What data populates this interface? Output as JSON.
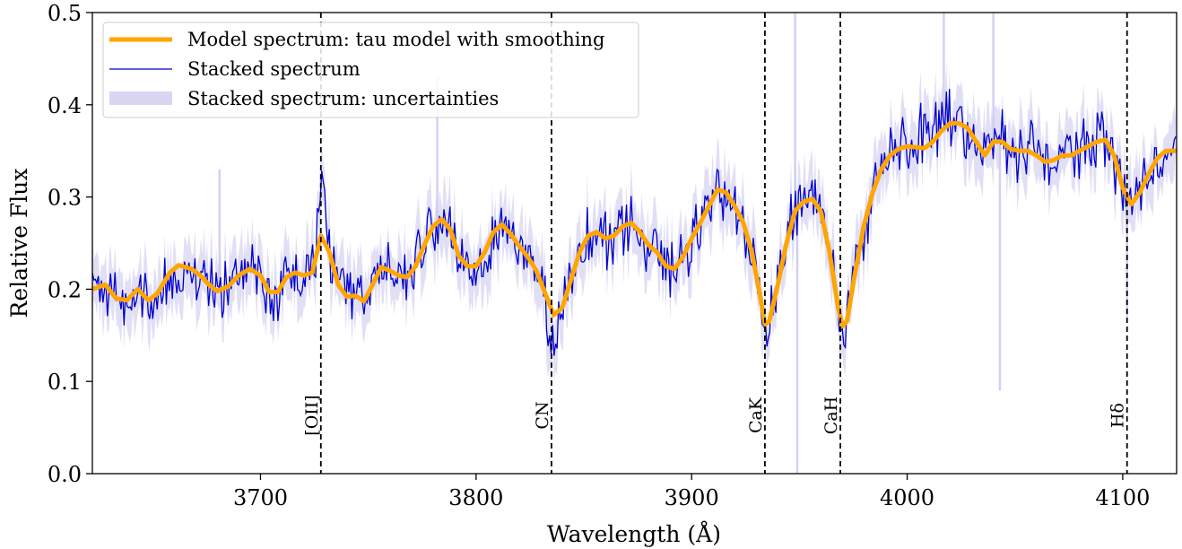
{
  "chart_data": {
    "type": "line",
    "xlabel": "Wavelength (Å)",
    "ylabel": "Relative Flux",
    "xlim": [
      3622,
      4125
    ],
    "ylim": [
      0,
      0.5
    ],
    "x_ticks": [
      3700,
      3800,
      3900,
      4000,
      4100
    ],
    "y_ticks": [
      0.0,
      0.1,
      0.2,
      0.3,
      0.4,
      0.5
    ],
    "x_tick_labels": [
      "3700",
      "3800",
      "3900",
      "4000",
      "4100"
    ],
    "y_tick_labels": [
      "0.0",
      "0.1",
      "0.2",
      "0.3",
      "0.4",
      "0.5"
    ],
    "grid": false,
    "legend_position": "top-left",
    "series": [
      {
        "name": "Model spectrum: tau model with smoothing",
        "color": "#ffa500",
        "x": [
          3622,
          3628,
          3633,
          3638,
          3643,
          3648,
          3652,
          3658,
          3662,
          3668,
          3672,
          3676,
          3680,
          3685,
          3690,
          3695,
          3700,
          3704,
          3708,
          3712,
          3716,
          3720,
          3724,
          3728,
          3732,
          3736,
          3740,
          3744,
          3748,
          3752,
          3756,
          3760,
          3764,
          3768,
          3772,
          3776,
          3780,
          3784,
          3788,
          3792,
          3796,
          3800,
          3804,
          3808,
          3812,
          3816,
          3820,
          3824,
          3828,
          3832,
          3836,
          3840,
          3844,
          3848,
          3852,
          3856,
          3860,
          3864,
          3868,
          3872,
          3876,
          3880,
          3884,
          3888,
          3892,
          3896,
          3900,
          3904,
          3908,
          3912,
          3916,
          3920,
          3924,
          3928,
          3932,
          3934,
          3936,
          3940,
          3944,
          3948,
          3952,
          3956,
          3960,
          3964,
          3968,
          3970,
          3972,
          3976,
          3980,
          3984,
          3988,
          3992,
          3996,
          4000,
          4004,
          4008,
          4012,
          4016,
          4020,
          4024,
          4028,
          4032,
          4036,
          4040,
          4044,
          4048,
          4052,
          4056,
          4060,
          4064,
          4068,
          4072,
          4076,
          4080,
          4084,
          4088,
          4092,
          4096,
          4100,
          4104,
          4108,
          4112,
          4116,
          4120,
          4125
        ],
        "y": [
          0.2,
          0.205,
          0.19,
          0.188,
          0.2,
          0.188,
          0.195,
          0.218,
          0.226,
          0.222,
          0.215,
          0.205,
          0.198,
          0.203,
          0.215,
          0.222,
          0.215,
          0.197,
          0.197,
          0.213,
          0.218,
          0.215,
          0.218,
          0.258,
          0.24,
          0.205,
          0.192,
          0.193,
          0.187,
          0.205,
          0.224,
          0.22,
          0.215,
          0.213,
          0.225,
          0.248,
          0.268,
          0.276,
          0.265,
          0.236,
          0.225,
          0.225,
          0.24,
          0.262,
          0.27,
          0.26,
          0.247,
          0.235,
          0.22,
          0.196,
          0.172,
          0.18,
          0.21,
          0.24,
          0.258,
          0.262,
          0.255,
          0.258,
          0.268,
          0.272,
          0.262,
          0.248,
          0.24,
          0.225,
          0.222,
          0.235,
          0.255,
          0.272,
          0.29,
          0.308,
          0.305,
          0.29,
          0.272,
          0.24,
          0.19,
          0.162,
          0.165,
          0.205,
          0.25,
          0.285,
          0.295,
          0.298,
          0.284,
          0.24,
          0.18,
          0.16,
          0.165,
          0.22,
          0.27,
          0.305,
          0.33,
          0.345,
          0.352,
          0.355,
          0.354,
          0.353,
          0.36,
          0.372,
          0.38,
          0.38,
          0.375,
          0.36,
          0.345,
          0.36,
          0.36,
          0.352,
          0.35,
          0.35,
          0.345,
          0.338,
          0.34,
          0.345,
          0.345,
          0.35,
          0.355,
          0.36,
          0.362,
          0.345,
          0.31,
          0.292,
          0.305,
          0.325,
          0.342,
          0.35,
          0.35
        ]
      },
      {
        "name": "Stacked spectrum",
        "color": "#0000cc"
      },
      {
        "name": "Stacked spectrum: uncertainties",
        "color": "#c8c5ee"
      }
    ],
    "annotations": [
      {
        "label": "[OII]",
        "x": 3728
      },
      {
        "label": "CN",
        "x": 3835
      },
      {
        "label": "CaK",
        "x": 3934
      },
      {
        "label": "CaH",
        "x": 3969
      },
      {
        "label": "Hδ",
        "x": 4102
      }
    ]
  }
}
